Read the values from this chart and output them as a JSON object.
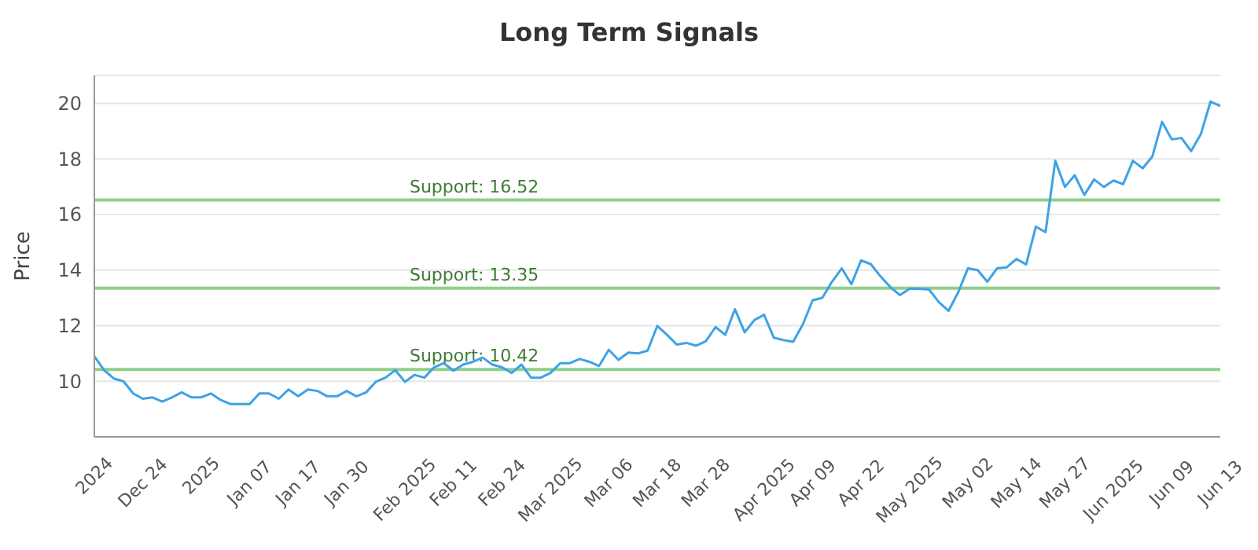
{
  "chart_data": {
    "type": "line",
    "title": "Long Term Signals",
    "ylabel": "Price",
    "categories": [
      "2024",
      null,
      null,
      null,
      null,
      "Dec 24",
      null,
      null,
      null,
      null,
      null,
      "2025",
      null,
      null,
      null,
      null,
      "Jan 07",
      null,
      null,
      null,
      null,
      "Jan 17",
      null,
      null,
      null,
      null,
      "Jan 30",
      null,
      null,
      null,
      null,
      null,
      "Feb 2025",
      null,
      null,
      null,
      null,
      "Feb 11",
      null,
      null,
      null,
      null,
      "Feb 24",
      null,
      null,
      null,
      null,
      "Mar 2025",
      null,
      null,
      null,
      null,
      null,
      "Mar 06",
      null,
      null,
      null,
      null,
      "Mar 18",
      null,
      null,
      null,
      null,
      "Mar 28",
      null,
      null,
      null,
      null,
      null,
      "Apr 2025",
      null,
      null,
      null,
      null,
      "Apr 09",
      null,
      null,
      null,
      null,
      "Apr 22",
      null,
      null,
      null,
      null,
      "May 2025",
      null,
      null,
      null,
      null,
      null,
      "May 02",
      null,
      null,
      null,
      null,
      "May 14",
      null,
      null,
      null,
      null,
      "May 27",
      null,
      null,
      null,
      null,
      "Jun 2025",
      null,
      null,
      null,
      null,
      null,
      "Jun 09",
      null,
      null,
      null,
      null,
      "Jun 13"
    ],
    "series": [
      {
        "color": "#3ea2e6",
        "values": [
          10.9,
          10.4,
          10.1,
          10.0,
          9.56,
          9.37,
          9.42,
          9.27,
          9.42,
          9.6,
          9.42,
          9.42,
          9.56,
          9.33,
          9.18,
          9.18,
          9.18,
          9.56,
          9.56,
          9.37,
          9.7,
          9.46,
          9.7,
          9.65,
          9.46,
          9.46,
          9.65,
          9.46,
          9.6,
          9.98,
          10.13,
          10.4,
          9.98,
          10.23,
          10.13,
          10.5,
          10.65,
          10.38,
          10.6,
          10.7,
          10.85,
          10.6,
          10.5,
          10.3,
          10.6,
          10.13,
          10.13,
          10.3,
          10.65,
          10.65,
          10.8,
          10.7,
          10.55,
          11.13,
          10.77,
          11.03,
          11.0,
          11.1,
          11.99,
          11.67,
          11.32,
          11.38,
          11.28,
          11.44,
          11.95,
          11.67,
          12.59,
          11.76,
          12.2,
          12.39,
          11.57,
          11.48,
          11.42,
          12.05,
          12.91,
          13.0,
          13.58,
          14.06,
          13.49,
          14.35,
          14.21,
          13.77,
          13.39,
          13.1,
          13.33,
          13.33,
          13.3,
          12.85,
          12.53,
          13.2,
          14.06,
          14.0,
          13.58,
          14.06,
          14.1,
          14.4,
          14.2,
          15.56,
          15.36,
          17.93,
          16.99,
          17.41,
          16.7,
          17.26,
          16.99,
          17.22,
          17.09,
          17.93,
          17.66,
          18.08,
          19.33,
          18.7,
          18.75,
          18.28,
          18.89,
          20.06,
          19.9
        ]
      }
    ],
    "ylim": [
      8,
      21
    ],
    "yticks": [
      10,
      12,
      14,
      16,
      18,
      20
    ],
    "grid": "y",
    "legend": false,
    "marker": "none",
    "line_style": "solid",
    "ref_lines": [
      {
        "axis": "y",
        "value": 16.52,
        "label": "Support: 16.52",
        "color": "#8fcf8a"
      },
      {
        "axis": "y",
        "value": 13.35,
        "label": "Support: 13.35",
        "color": "#8fcf8a"
      },
      {
        "axis": "y",
        "value": 10.42,
        "label": "Support: 10.42",
        "color": "#8fcf8a"
      }
    ]
  }
}
